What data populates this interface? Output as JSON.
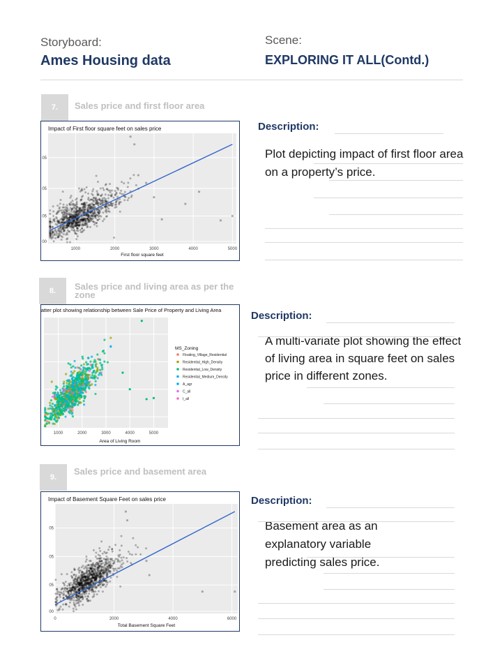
{
  "header": {
    "storyboard_label": "Storyboard:",
    "storyboard_title": "Ames Housing data",
    "scene_label": "Scene:",
    "scene_title": "EXPLORING IT ALL(Contd.)"
  },
  "sections": [
    {
      "number": "7.",
      "title": "Sales price and first floor area",
      "description_label": "Description:",
      "description": "Plot depicting impact of first floor area on a property’s price."
    },
    {
      "number": "8.",
      "title": "Sales price and living area as per the zone",
      "description_label": "Description:",
      "description": "A multi-variate plot showing the effect of living area in square feet on sales price in different zones."
    },
    {
      "number": "9.",
      "title": "Sales price and basement area",
      "description_label": "Description:",
      "description": "Basement area as an explanatory variable predicting sales price."
    }
  ],
  "chart_data": [
    {
      "type": "scatter",
      "title": "Impact of First floor square feet on sales price",
      "xlabel": "First floor square feet",
      "ylabel": "",
      "xlim": [
        300,
        5100
      ],
      "x_ticks": [
        "1000",
        "2000",
        "3000",
        "4000",
        "5000"
      ],
      "y_ticks": [
        "00",
        "05",
        "05",
        "05"
      ],
      "grid": true,
      "trend_line": {
        "x": [
          350,
          5000
        ],
        "y": [
          0.12,
          0.9
        ]
      },
      "points_color": "#000000",
      "line_color": "#3366cc"
    },
    {
      "type": "scatter",
      "title": "catter plot showing relationship between Sale Price of Property and Living Area",
      "xlabel": "Area of Living Room",
      "ylabel": "",
      "xlim": [
        400,
        5600
      ],
      "x_ticks": [
        "1000",
        "2000",
        "3000",
        "4000",
        "5000"
      ],
      "grid": true,
      "legend": {
        "title": "MS_Zoning",
        "placement": "right",
        "items": [
          {
            "name": "Floating_Village_Residential",
            "color": "#f8766d"
          },
          {
            "name": "Residential_High_Density",
            "color": "#a3a500"
          },
          {
            "name": "Residential_Low_Density",
            "color": "#00bf7d"
          },
          {
            "name": "Residential_Medium_Density",
            "color": "#00b0f6"
          },
          {
            "name": "A_agr",
            "color": "#00b0f6"
          },
          {
            "name": "C_all",
            "color": "#e76bf3"
          },
          {
            "name": "I_all",
            "color": "#ff61c3"
          }
        ]
      }
    },
    {
      "type": "scatter",
      "title": "Impact of Basement Square Feet on sales price",
      "xlabel": "Total Basement Square Feet",
      "ylabel": "",
      "xlim": [
        0,
        6200
      ],
      "x_ticks": [
        "0",
        "2000",
        "4000",
        "6000"
      ],
      "y_ticks": [
        "00",
        "05",
        "05",
        "05"
      ],
      "grid": true,
      "trend_line": {
        "x": [
          0,
          6100
        ],
        "y": [
          0.08,
          0.93
        ]
      },
      "points_color": "#000000",
      "line_color": "#3366cc"
    }
  ]
}
